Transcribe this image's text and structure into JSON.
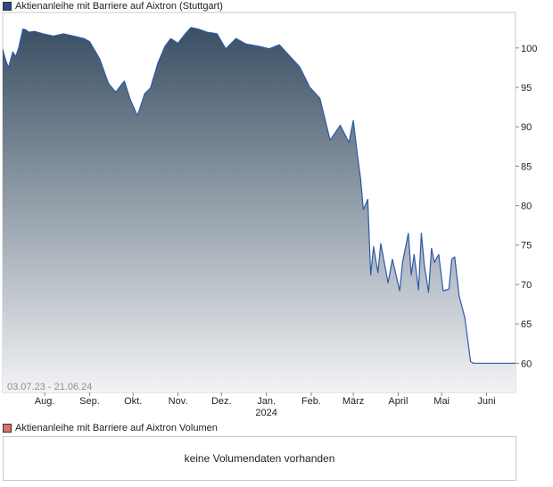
{
  "price_legend": "Aktienanleihe mit Barriere auf Aixtron  (Stuttgart)",
  "volume_legend": "Aktienanleihe mit Barriere auf Aixtron  Volumen",
  "volume_message": "keine Volumendaten vorhanden",
  "date_range": "03.07.23 - 21.06.24",
  "colors": {
    "line": "#2c5aa8",
    "fill_top": "#3a4f63",
    "fill_bottom": "#f2f3f5"
  },
  "chart_data": {
    "type": "area",
    "title": "Aktienanleihe mit Barriere auf Aixtron  (Stuttgart)",
    "x_tick_labels": [
      "Aug.",
      "Sep.",
      "Okt.",
      "Nov.",
      "Dez.",
      "Jan.",
      "Feb.",
      "März",
      "April",
      "Mai",
      "Juni"
    ],
    "x_year_label": "2024",
    "y_ticks": [
      60,
      65,
      70,
      75,
      80,
      85,
      90,
      95,
      100
    ],
    "ylim": [
      56.3,
      104.5
    ],
    "grid": false,
    "x": [
      "2023-07-03",
      "2023-07-05",
      "2023-07-07",
      "2023-07-10",
      "2023-07-12",
      "2023-07-14",
      "2023-07-17",
      "2023-07-19",
      "2023-07-21",
      "2023-07-25",
      "2023-07-31",
      "2023-08-07",
      "2023-08-14",
      "2023-08-21",
      "2023-08-28",
      "2023-09-01",
      "2023-09-08",
      "2023-09-14",
      "2023-09-19",
      "2023-09-25",
      "2023-09-29",
      "2023-10-04",
      "2023-10-09",
      "2023-10-13",
      "2023-10-18",
      "2023-10-23",
      "2023-10-27",
      "2023-11-01",
      "2023-11-06",
      "2023-11-10",
      "2023-11-15",
      "2023-11-21",
      "2023-11-28",
      "2023-12-04",
      "2023-12-11",
      "2023-12-18",
      "2023-12-27",
      "2024-01-03",
      "2024-01-10",
      "2024-01-17",
      "2024-01-24",
      "2024-01-31",
      "2024-02-07",
      "2024-02-14",
      "2024-02-21",
      "2024-02-27",
      "2024-03-01",
      "2024-03-04",
      "2024-03-06",
      "2024-03-08",
      "2024-03-11",
      "2024-03-13",
      "2024-03-15",
      "2024-03-18",
      "2024-03-20",
      "2024-03-25",
      "2024-03-28",
      "2024-04-02",
      "2024-04-04",
      "2024-04-08",
      "2024-04-10",
      "2024-04-12",
      "2024-04-15",
      "2024-04-17",
      "2024-04-19",
      "2024-04-22",
      "2024-04-24",
      "2024-04-26",
      "2024-04-29",
      "2024-05-02",
      "2024-05-06",
      "2024-05-08",
      "2024-05-10",
      "2024-05-13",
      "2024-05-15",
      "2024-05-17",
      "2024-05-21",
      "2024-05-23",
      "2024-05-27",
      "2024-05-29",
      "2024-06-03",
      "2024-06-05",
      "2024-06-07",
      "2024-06-10",
      "2024-06-12",
      "2024-06-14",
      "2024-06-17",
      "2024-06-19",
      "2024-06-21"
    ],
    "series": [
      {
        "values": [
          99.8,
          98.5,
          97.5,
          99.5,
          98.9,
          100.0,
          102.4,
          102.3,
          102.0,
          102.1,
          101.8,
          101.5,
          101.8,
          101.5,
          101.2,
          100.8,
          98.6,
          95.5,
          94.4,
          95.8,
          93.5,
          91.4,
          94.2,
          94.9,
          98.0,
          100.2,
          101.2,
          100.6,
          101.8,
          102.6,
          102.4,
          102.0,
          101.8,
          99.9,
          101.2,
          100.5,
          100.2,
          99.9,
          100.4,
          99.0,
          97.6,
          95.0,
          93.6,
          88.3,
          90.2,
          88.0,
          90.8,
          86.2,
          83.5,
          79.5,
          80.8,
          71.2,
          74.8,
          71.5,
          75.2,
          70.2,
          73.2,
          69.2,
          72.8,
          76.5,
          71.2,
          73.8,
          69.3,
          76.5,
          72.5,
          69.0,
          74.6,
          72.8,
          73.8,
          69.2,
          69.4,
          73.2,
          73.5,
          68.6,
          67.2,
          65.8,
          60.2,
          60.0,
          60.0,
          60.0,
          60.0,
          60.0,
          60.0,
          60.0,
          60.0,
          60.0,
          60.0,
          60.0,
          60.0
        ]
      }
    ]
  }
}
